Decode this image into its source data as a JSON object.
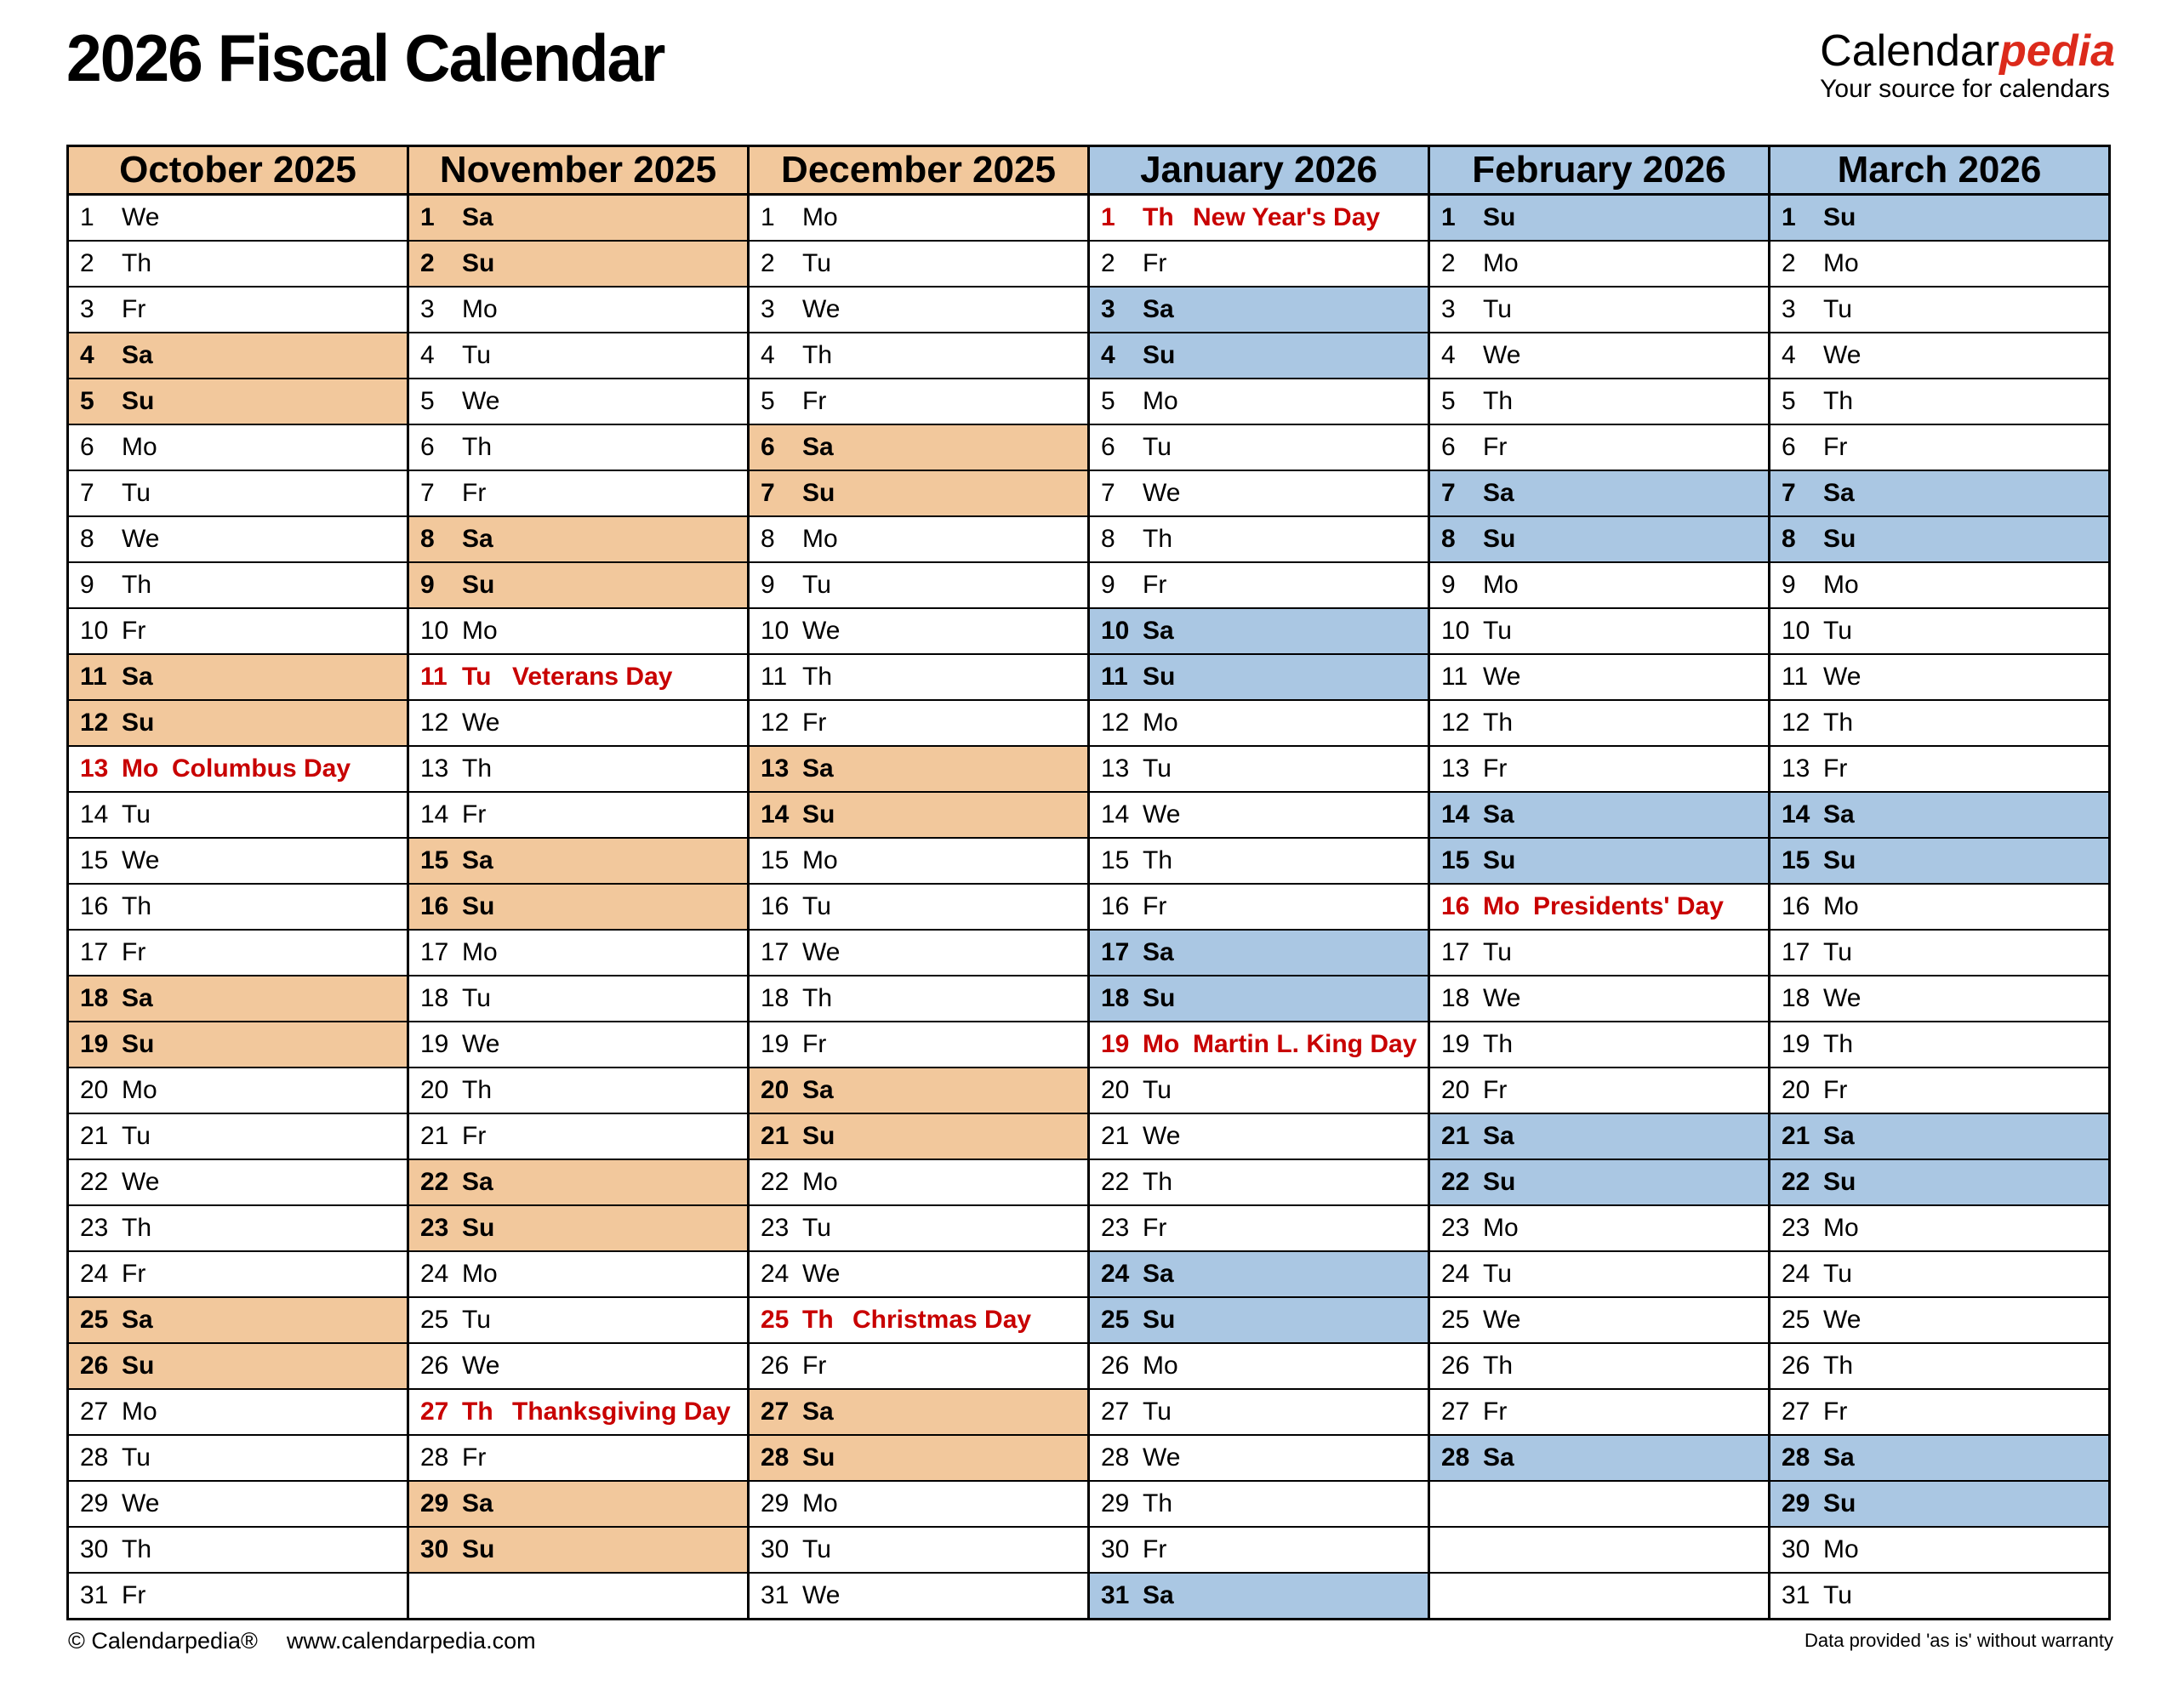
{
  "header": {
    "title": "2026 Fiscal Calendar",
    "brand_black": "Calendar",
    "brand_red": "pedia",
    "tagline": "Your source for calendars"
  },
  "footer": {
    "copyright": "© Calendarpedia®",
    "url": "www.calendarpedia.com",
    "disclaimer": "Data provided 'as is' without warranty"
  },
  "colors": {
    "tan": "#f2c89c",
    "blue": "#aac7e3",
    "holiday_bg": "#fad4d4",
    "holiday_text": "#c80000",
    "empty": "#e3e3e3",
    "brand_red": "#dc2a1b",
    "border": "#000000"
  },
  "months": [
    {
      "name": "October 2025",
      "scheme": "tan",
      "days": [
        {
          "n": 1,
          "wd": "We"
        },
        {
          "n": 2,
          "wd": "Th"
        },
        {
          "n": 3,
          "wd": "Fr"
        },
        {
          "n": 4,
          "wd": "Sa"
        },
        {
          "n": 5,
          "wd": "Su"
        },
        {
          "n": 6,
          "wd": "Mo"
        },
        {
          "n": 7,
          "wd": "Tu"
        },
        {
          "n": 8,
          "wd": "We"
        },
        {
          "n": 9,
          "wd": "Th"
        },
        {
          "n": 10,
          "wd": "Fr"
        },
        {
          "n": 11,
          "wd": "Sa"
        },
        {
          "n": 12,
          "wd": "Su"
        },
        {
          "n": 13,
          "wd": "Mo",
          "holiday": "Columbus Day"
        },
        {
          "n": 14,
          "wd": "Tu"
        },
        {
          "n": 15,
          "wd": "We"
        },
        {
          "n": 16,
          "wd": "Th"
        },
        {
          "n": 17,
          "wd": "Fr"
        },
        {
          "n": 18,
          "wd": "Sa"
        },
        {
          "n": 19,
          "wd": "Su"
        },
        {
          "n": 20,
          "wd": "Mo"
        },
        {
          "n": 21,
          "wd": "Tu"
        },
        {
          "n": 22,
          "wd": "We"
        },
        {
          "n": 23,
          "wd": "Th"
        },
        {
          "n": 24,
          "wd": "Fr"
        },
        {
          "n": 25,
          "wd": "Sa"
        },
        {
          "n": 26,
          "wd": "Su"
        },
        {
          "n": 27,
          "wd": "Mo"
        },
        {
          "n": 28,
          "wd": "Tu"
        },
        {
          "n": 29,
          "wd": "We"
        },
        {
          "n": 30,
          "wd": "Th"
        },
        {
          "n": 31,
          "wd": "Fr"
        }
      ]
    },
    {
      "name": "November 2025",
      "scheme": "tan",
      "days": [
        {
          "n": 1,
          "wd": "Sa"
        },
        {
          "n": 2,
          "wd": "Su"
        },
        {
          "n": 3,
          "wd": "Mo"
        },
        {
          "n": 4,
          "wd": "Tu"
        },
        {
          "n": 5,
          "wd": "We"
        },
        {
          "n": 6,
          "wd": "Th"
        },
        {
          "n": 7,
          "wd": "Fr"
        },
        {
          "n": 8,
          "wd": "Sa"
        },
        {
          "n": 9,
          "wd": "Su"
        },
        {
          "n": 10,
          "wd": "Mo"
        },
        {
          "n": 11,
          "wd": "Tu",
          "holiday": "Veterans Day"
        },
        {
          "n": 12,
          "wd": "We"
        },
        {
          "n": 13,
          "wd": "Th"
        },
        {
          "n": 14,
          "wd": "Fr"
        },
        {
          "n": 15,
          "wd": "Sa"
        },
        {
          "n": 16,
          "wd": "Su"
        },
        {
          "n": 17,
          "wd": "Mo"
        },
        {
          "n": 18,
          "wd": "Tu"
        },
        {
          "n": 19,
          "wd": "We"
        },
        {
          "n": 20,
          "wd": "Th"
        },
        {
          "n": 21,
          "wd": "Fr"
        },
        {
          "n": 22,
          "wd": "Sa"
        },
        {
          "n": 23,
          "wd": "Su"
        },
        {
          "n": 24,
          "wd": "Mo"
        },
        {
          "n": 25,
          "wd": "Tu"
        },
        {
          "n": 26,
          "wd": "We"
        },
        {
          "n": 27,
          "wd": "Th",
          "holiday": "Thanksgiving Day"
        },
        {
          "n": 28,
          "wd": "Fr"
        },
        {
          "n": 29,
          "wd": "Sa"
        },
        {
          "n": 30,
          "wd": "Su"
        },
        null
      ]
    },
    {
      "name": "December 2025",
      "scheme": "tan",
      "days": [
        {
          "n": 1,
          "wd": "Mo"
        },
        {
          "n": 2,
          "wd": "Tu"
        },
        {
          "n": 3,
          "wd": "We"
        },
        {
          "n": 4,
          "wd": "Th"
        },
        {
          "n": 5,
          "wd": "Fr"
        },
        {
          "n": 6,
          "wd": "Sa"
        },
        {
          "n": 7,
          "wd": "Su"
        },
        {
          "n": 8,
          "wd": "Mo"
        },
        {
          "n": 9,
          "wd": "Tu"
        },
        {
          "n": 10,
          "wd": "We"
        },
        {
          "n": 11,
          "wd": "Th"
        },
        {
          "n": 12,
          "wd": "Fr"
        },
        {
          "n": 13,
          "wd": "Sa"
        },
        {
          "n": 14,
          "wd": "Su"
        },
        {
          "n": 15,
          "wd": "Mo"
        },
        {
          "n": 16,
          "wd": "Tu"
        },
        {
          "n": 17,
          "wd": "We"
        },
        {
          "n": 18,
          "wd": "Th"
        },
        {
          "n": 19,
          "wd": "Fr"
        },
        {
          "n": 20,
          "wd": "Sa"
        },
        {
          "n": 21,
          "wd": "Su"
        },
        {
          "n": 22,
          "wd": "Mo"
        },
        {
          "n": 23,
          "wd": "Tu"
        },
        {
          "n": 24,
          "wd": "We"
        },
        {
          "n": 25,
          "wd": "Th",
          "holiday": "Christmas Day"
        },
        {
          "n": 26,
          "wd": "Fr"
        },
        {
          "n": 27,
          "wd": "Sa"
        },
        {
          "n": 28,
          "wd": "Su"
        },
        {
          "n": 29,
          "wd": "Mo"
        },
        {
          "n": 30,
          "wd": "Tu"
        },
        {
          "n": 31,
          "wd": "We"
        }
      ]
    },
    {
      "name": "January 2026",
      "scheme": "blue",
      "days": [
        {
          "n": 1,
          "wd": "Th",
          "holiday": "New Year's Day"
        },
        {
          "n": 2,
          "wd": "Fr"
        },
        {
          "n": 3,
          "wd": "Sa"
        },
        {
          "n": 4,
          "wd": "Su"
        },
        {
          "n": 5,
          "wd": "Mo"
        },
        {
          "n": 6,
          "wd": "Tu"
        },
        {
          "n": 7,
          "wd": "We"
        },
        {
          "n": 8,
          "wd": "Th"
        },
        {
          "n": 9,
          "wd": "Fr"
        },
        {
          "n": 10,
          "wd": "Sa"
        },
        {
          "n": 11,
          "wd": "Su"
        },
        {
          "n": 12,
          "wd": "Mo"
        },
        {
          "n": 13,
          "wd": "Tu"
        },
        {
          "n": 14,
          "wd": "We"
        },
        {
          "n": 15,
          "wd": "Th"
        },
        {
          "n": 16,
          "wd": "Fr"
        },
        {
          "n": 17,
          "wd": "Sa"
        },
        {
          "n": 18,
          "wd": "Su"
        },
        {
          "n": 19,
          "wd": "Mo",
          "holiday": "Martin L. King Day"
        },
        {
          "n": 20,
          "wd": "Tu"
        },
        {
          "n": 21,
          "wd": "We"
        },
        {
          "n": 22,
          "wd": "Th"
        },
        {
          "n": 23,
          "wd": "Fr"
        },
        {
          "n": 24,
          "wd": "Sa"
        },
        {
          "n": 25,
          "wd": "Su"
        },
        {
          "n": 26,
          "wd": "Mo"
        },
        {
          "n": 27,
          "wd": "Tu"
        },
        {
          "n": 28,
          "wd": "We"
        },
        {
          "n": 29,
          "wd": "Th"
        },
        {
          "n": 30,
          "wd": "Fr"
        },
        {
          "n": 31,
          "wd": "Sa"
        }
      ]
    },
    {
      "name": "February 2026",
      "scheme": "blue",
      "days": [
        {
          "n": 1,
          "wd": "Su"
        },
        {
          "n": 2,
          "wd": "Mo"
        },
        {
          "n": 3,
          "wd": "Tu"
        },
        {
          "n": 4,
          "wd": "We"
        },
        {
          "n": 5,
          "wd": "Th"
        },
        {
          "n": 6,
          "wd": "Fr"
        },
        {
          "n": 7,
          "wd": "Sa"
        },
        {
          "n": 8,
          "wd": "Su"
        },
        {
          "n": 9,
          "wd": "Mo"
        },
        {
          "n": 10,
          "wd": "Tu"
        },
        {
          "n": 11,
          "wd": "We"
        },
        {
          "n": 12,
          "wd": "Th"
        },
        {
          "n": 13,
          "wd": "Fr"
        },
        {
          "n": 14,
          "wd": "Sa"
        },
        {
          "n": 15,
          "wd": "Su"
        },
        {
          "n": 16,
          "wd": "Mo",
          "holiday": "Presidents' Day"
        },
        {
          "n": 17,
          "wd": "Tu"
        },
        {
          "n": 18,
          "wd": "We"
        },
        {
          "n": 19,
          "wd": "Th"
        },
        {
          "n": 20,
          "wd": "Fr"
        },
        {
          "n": 21,
          "wd": "Sa"
        },
        {
          "n": 22,
          "wd": "Su"
        },
        {
          "n": 23,
          "wd": "Mo"
        },
        {
          "n": 24,
          "wd": "Tu"
        },
        {
          "n": 25,
          "wd": "We"
        },
        {
          "n": 26,
          "wd": "Th"
        },
        {
          "n": 27,
          "wd": "Fr"
        },
        {
          "n": 28,
          "wd": "Sa"
        },
        null,
        null,
        null
      ]
    },
    {
      "name": "March 2026",
      "scheme": "blue",
      "days": [
        {
          "n": 1,
          "wd": "Su"
        },
        {
          "n": 2,
          "wd": "Mo"
        },
        {
          "n": 3,
          "wd": "Tu"
        },
        {
          "n": 4,
          "wd": "We"
        },
        {
          "n": 5,
          "wd": "Th"
        },
        {
          "n": 6,
          "wd": "Fr"
        },
        {
          "n": 7,
          "wd": "Sa"
        },
        {
          "n": 8,
          "wd": "Su"
        },
        {
          "n": 9,
          "wd": "Mo"
        },
        {
          "n": 10,
          "wd": "Tu"
        },
        {
          "n": 11,
          "wd": "We"
        },
        {
          "n": 12,
          "wd": "Th"
        },
        {
          "n": 13,
          "wd": "Fr"
        },
        {
          "n": 14,
          "wd": "Sa"
        },
        {
          "n": 15,
          "wd": "Su"
        },
        {
          "n": 16,
          "wd": "Mo"
        },
        {
          "n": 17,
          "wd": "Tu"
        },
        {
          "n": 18,
          "wd": "We"
        },
        {
          "n": 19,
          "wd": "Th"
        },
        {
          "n": 20,
          "wd": "Fr"
        },
        {
          "n": 21,
          "wd": "Sa"
        },
        {
          "n": 22,
          "wd": "Su"
        },
        {
          "n": 23,
          "wd": "Mo"
        },
        {
          "n": 24,
          "wd": "Tu"
        },
        {
          "n": 25,
          "wd": "We"
        },
        {
          "n": 26,
          "wd": "Th"
        },
        {
          "n": 27,
          "wd": "Fr"
        },
        {
          "n": 28,
          "wd": "Sa"
        },
        {
          "n": 29,
          "wd": "Su"
        },
        {
          "n": 30,
          "wd": "Mo"
        },
        {
          "n": 31,
          "wd": "Tu"
        }
      ]
    }
  ]
}
